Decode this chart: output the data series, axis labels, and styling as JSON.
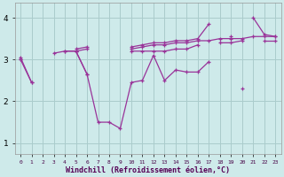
{
  "x": [
    0,
    1,
    2,
    3,
    4,
    5,
    6,
    7,
    8,
    9,
    10,
    11,
    12,
    13,
    14,
    15,
    16,
    17,
    18,
    19,
    20,
    21,
    22,
    23
  ],
  "line_upper1": [
    3.0,
    null,
    null,
    null,
    null,
    3.2,
    3.25,
    null,
    null,
    null,
    3.25,
    3.3,
    3.35,
    3.35,
    3.4,
    3.4,
    3.45,
    3.45,
    3.5,
    3.5,
    3.5,
    3.55,
    3.55,
    3.55
  ],
  "line_upper2": [
    null,
    null,
    null,
    null,
    null,
    3.25,
    3.3,
    null,
    null,
    null,
    3.3,
    3.35,
    3.4,
    3.4,
    3.45,
    3.45,
    3.5,
    3.85,
    null,
    3.55,
    null,
    4.0,
    3.6,
    3.55
  ],
  "line_mid": [
    3.05,
    2.45,
    null,
    3.15,
    3.2,
    3.2,
    2.65,
    null,
    null,
    null,
    3.2,
    3.2,
    3.2,
    3.2,
    3.25,
    3.25,
    3.35,
    null,
    3.4,
    3.4,
    3.45,
    null,
    3.45,
    3.45
  ],
  "line_lower": [
    3.0,
    2.45,
    null,
    null,
    3.2,
    3.2,
    2.65,
    1.5,
    1.5,
    1.35,
    2.45,
    2.5,
    3.1,
    2.5,
    2.75,
    2.7,
    2.7,
    2.95,
    null,
    null,
    2.3,
    null,
    null,
    null
  ],
  "bg_color": "#ceeaea",
  "grid_color": "#aacccc",
  "line_color": "#993399",
  "ylabel_values": [
    1,
    2,
    3,
    4
  ],
  "xlabel": "Windchill (Refroidissement éolien,°C)",
  "ylim": [
    0.75,
    4.35
  ],
  "xlim": [
    -0.5,
    23.5
  ]
}
